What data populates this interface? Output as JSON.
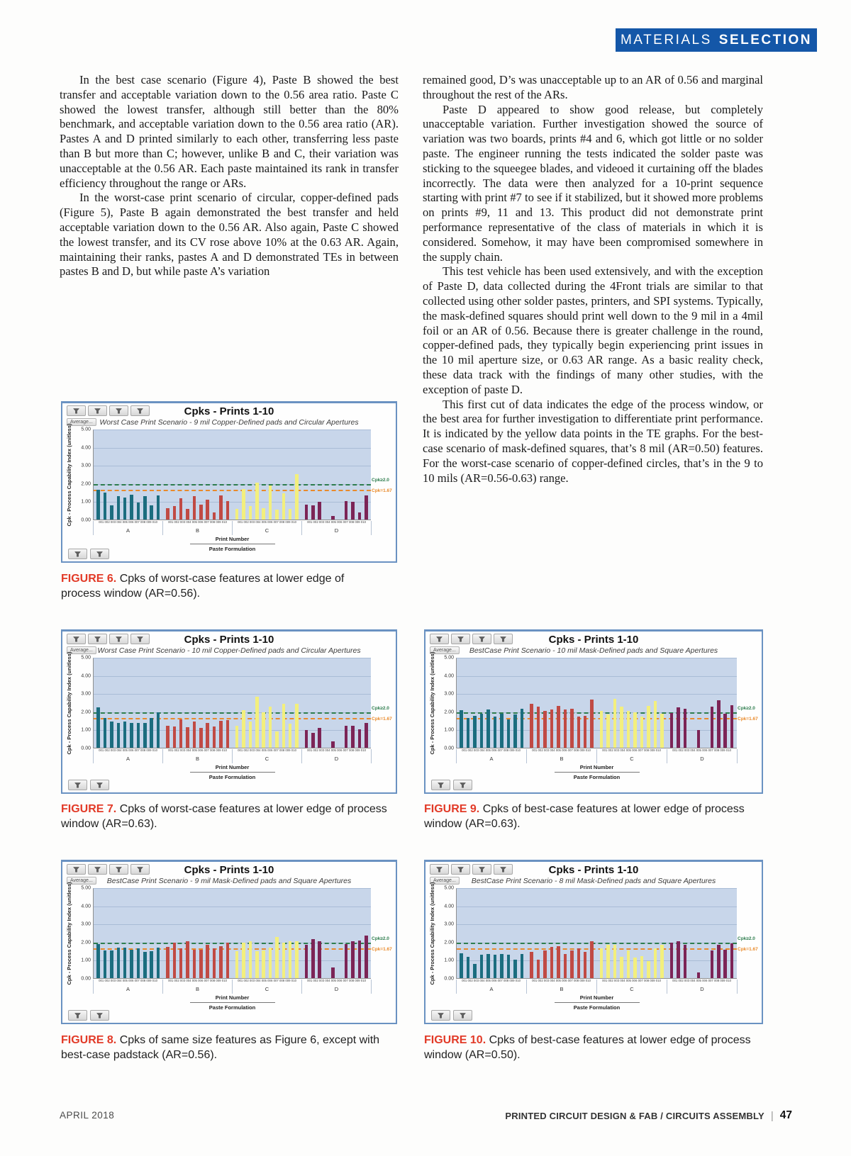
{
  "page": {
    "banner": {
      "text_regular": "MATERIALS",
      "text_bold": "SELECTION",
      "bg_color": "#1457a8"
    },
    "footer": {
      "left": "APRIL 2018",
      "right": "PRINTED CIRCUIT DESIGN & FAB / CIRCUITS ASSEMBLY",
      "separator": "|",
      "page_number": "47"
    }
  },
  "article": {
    "left_column": [
      "In the best case scenario (Figure 4), Paste B showed the best transfer and acceptable variation down to the 0.56 area ratio. Paste C showed the lowest transfer, although still better than the 80% benchmark, and acceptable variation down to the 0.56 area ratio (AR). Pastes A and D printed similarly to each other, transferring less paste than B but more than C; however, unlike B and C, their variation was unacceptable at the 0.56 AR. Each paste maintained its rank in transfer efficiency throughout the range or ARs.",
      "In the worst-case print scenario of circular, copper-defined pads (Figure 5), Paste B again demonstrated the best transfer and held acceptable variation down to the 0.56 AR. Also again, Paste C showed the lowest transfer, and its CV rose above 10% at the 0.63 AR. Again, maintaining their ranks, pastes A and D demonstrated TEs in between pastes B and D, but while paste A’s variation"
    ],
    "right_column": [
      "remained good, D’s was unacceptable up to an AR of 0.56 and marginal throughout the rest of the ARs.",
      "Paste D appeared to show good release, but completely unacceptable variation. Further investigation showed the source of variation was two boards, prints #4 and 6, which got little or no solder paste. The engineer running the tests indicated the solder paste was sticking to the squeegee blades, and videoed it curtaining off the blades incorrectly. The data were then analyzed for a 10-print sequence starting with print #7 to see if it stabilized, but it showed more problems on prints #9, 11 and 13. This product did not demonstrate print performance representative of the class of materials in which it is considered. Somehow, it may have been compromised somewhere in the supply chain.",
      "This test vehicle has been used extensively, and with the exception of Paste D, data collected during the 4Front trials are similar to that collected using other solder pastes, printers, and SPI systems. Typically, the mask-defined squares should print well down to the 9 mil in a 4mil foil or an AR of 0.56. Because there is greater challenge in the round, copper-defined pads, they typically begin experiencing print issues in the 10 mil aperture size, or 0.63 AR range. As a basic reality check, these data track with the findings of many other studies, with the exception of paste D.",
      "This first cut of data indicates the edge of the process window, or the best area for further investigation to differentiate print performance. It is indicated by the yellow data points in the TE graphs. For the best-case scenario of mask-defined squares, that’s 8 mil (AR=0.50) features. For the worst-case scenario of copper-defined circles, that’s in the 9 to 10 mils (AR=0.56-0.63) range."
    ]
  },
  "chart_data": [
    {
      "id": "figure-6",
      "type": "bar",
      "title": "Cpks - Prints 1-10",
      "subtitle": "Worst Case Print Scenario -  9 mil Copper-Defined pads and Circular Apertures",
      "toolbar_button": "Average...",
      "ylabel": "Cpk - Process Capability Index (unitless)",
      "xlabel": "Print Number",
      "xlabel2": "Paste Formulation",
      "ylim": [
        0,
        5
      ],
      "yticks": [
        "5.00",
        "4.00",
        "3.00",
        "2.00",
        "1.00",
        "0.00"
      ],
      "print_labels": [
        "001",
        "002",
        "003",
        "004",
        "005",
        "006",
        "007",
        "008",
        "009",
        "010"
      ],
      "categories": [
        "A",
        "B",
        "C",
        "D"
      ],
      "series": [
        {
          "name": "A",
          "color": "#1b6d7f",
          "values": [
            1.65,
            1.5,
            0.8,
            1.3,
            1.25,
            1.4,
            0.95,
            1.3,
            0.8,
            1.35
          ]
        },
        {
          "name": "B",
          "color": "#c04a44",
          "values": [
            0.65,
            0.75,
            1.2,
            0.6,
            1.3,
            0.85,
            1.1,
            0.4,
            1.35,
            1.05
          ]
        },
        {
          "name": "C",
          "color": "#f3ef7d",
          "values": [
            0.6,
            1.7,
            0.75,
            2.05,
            0.65,
            1.9,
            0.55,
            1.45,
            0.6,
            2.55
          ]
        },
        {
          "name": "D",
          "color": "#7c2456",
          "values": [
            0.85,
            0.8,
            1.0,
            0,
            0.2,
            0,
            1.05,
            1.0,
            0.4,
            1.35
          ]
        }
      ],
      "ref_lines": [
        {
          "label": "Cpk≥2.0",
          "value": 2.0,
          "color": "#2e7d4e"
        },
        {
          "label": "Cpk=1.67",
          "value": 1.67,
          "color": "#e98a2b"
        }
      ],
      "caption_label": "FIGURE 6.",
      "caption_text": "Cpks of worst-case features at lower edge of process window (AR=0.56)."
    },
    {
      "id": "figure-7",
      "type": "bar",
      "title": "Cpks - Prints 1-10",
      "subtitle": "Worst Case Print Scenario -  10 mil Copper-Defined pads and Circular Apertures",
      "toolbar_button": "Average...",
      "ylabel": "Cpk - Process Capability Index (unitless)",
      "xlabel": "Print Number",
      "xlabel2": "Paste Formulation",
      "ylim": [
        0,
        5
      ],
      "yticks": [
        "5.00",
        "4.00",
        "3.00",
        "2.00",
        "1.00",
        "0.00"
      ],
      "print_labels": [
        "001",
        "002",
        "003",
        "004",
        "005",
        "006",
        "007",
        "008",
        "009",
        "010"
      ],
      "categories": [
        "A",
        "B",
        "C",
        "D"
      ],
      "series": [
        {
          "name": "A",
          "color": "#1b6d7f",
          "values": [
            2.25,
            1.65,
            1.45,
            1.4,
            1.45,
            1.4,
            1.4,
            1.4,
            1.65,
            2.0
          ]
        },
        {
          "name": "B",
          "color": "#c04a44",
          "values": [
            1.25,
            1.2,
            1.6,
            1.15,
            1.45,
            1.1,
            1.4,
            1.2,
            1.5,
            1.55
          ]
        },
        {
          "name": "C",
          "color": "#f3ef7d",
          "values": [
            1.25,
            2.1,
            1.45,
            2.85,
            2.0,
            2.3,
            0.9,
            2.45,
            1.35,
            2.45
          ]
        },
        {
          "name": "D",
          "color": "#7c2456",
          "values": [
            1.0,
            0.85,
            1.1,
            0,
            0.35,
            0,
            1.25,
            1.25,
            1.05,
            1.4
          ]
        }
      ],
      "ref_lines": [
        {
          "label": "Cpk≥2.0",
          "value": 2.0,
          "color": "#2e7d4e"
        },
        {
          "label": "Cpk=1.67",
          "value": 1.67,
          "color": "#e98a2b"
        }
      ],
      "caption_label": "FIGURE 7.",
      "caption_text": "Cpks of worst-case features at lower edge of process window (AR=0.63)."
    },
    {
      "id": "figure-8",
      "type": "bar",
      "title": "Cpks - Prints 1-10",
      "subtitle": "BestCase Print Scenario -  9 mil Mask-Defined pads and Square Apertures",
      "toolbar_button": "Average...",
      "ylabel": "Cpk - Process Capability Index (unitless)",
      "xlabel": "Print Number",
      "xlabel2": "Paste Formulation",
      "ylim": [
        0,
        5
      ],
      "yticks": [
        "5.00",
        "4.00",
        "3.00",
        "2.00",
        "1.00",
        "0.00"
      ],
      "print_labels": [
        "001",
        "002",
        "003",
        "004",
        "005",
        "006",
        "007",
        "008",
        "009",
        "010"
      ],
      "categories": [
        "A",
        "B",
        "C",
        "D"
      ],
      "series": [
        {
          "name": "A",
          "color": "#1b6d7f",
          "values": [
            1.9,
            1.55,
            1.55,
            1.7,
            1.7,
            1.6,
            1.65,
            1.45,
            1.5,
            1.7
          ]
        },
        {
          "name": "B",
          "color": "#c04a44",
          "values": [
            1.75,
            2.0,
            1.65,
            2.05,
            1.6,
            1.6,
            1.85,
            1.65,
            1.8,
            2.0
          ]
        },
        {
          "name": "C",
          "color": "#f3ef7d",
          "values": [
            1.5,
            2.0,
            2.05,
            1.5,
            1.55,
            1.7,
            2.3,
            2.0,
            2.05,
            2.05
          ]
        },
        {
          "name": "D",
          "color": "#7c2456",
          "values": [
            1.85,
            2.2,
            2.05,
            0,
            0.6,
            0,
            1.9,
            2.05,
            2.1,
            2.4
          ]
        }
      ],
      "ref_lines": [
        {
          "label": "Cpk≥2.0",
          "value": 2.0,
          "color": "#2e7d4e"
        },
        {
          "label": "Cpk=1.67",
          "value": 1.67,
          "color": "#e98a2b"
        }
      ],
      "caption_label": "FIGURE 8.",
      "caption_text": "Cpks of same size features as Figure 6, except with best-case padstack (AR=0.56)."
    },
    {
      "id": "figure-9",
      "type": "bar",
      "title": "Cpks - Prints 1-10",
      "subtitle": "BestCase Print Scenario -  10 mil Mask-Defined pads and Square Apertures",
      "toolbar_button": "Average...",
      "ylabel": "Cpk - Process Capability Index (unitless)",
      "xlabel": "Print Number",
      "xlabel2": "Paste Formulation",
      "ylim": [
        0,
        5
      ],
      "yticks": [
        "5.00",
        "4.00",
        "3.00",
        "2.00",
        "1.00",
        "0.00"
      ],
      "print_labels": [
        "001",
        "002",
        "003",
        "004",
        "005",
        "006",
        "007",
        "008",
        "009",
        "010"
      ],
      "categories": [
        "A",
        "B",
        "C",
        "D"
      ],
      "series": [
        {
          "name": "A",
          "color": "#1b6d7f",
          "values": [
            2.1,
            1.65,
            1.8,
            1.9,
            2.15,
            1.75,
            1.9,
            1.6,
            1.85,
            2.2
          ]
        },
        {
          "name": "B",
          "color": "#c04a44",
          "values": [
            2.45,
            2.3,
            2.05,
            2.15,
            2.35,
            2.15,
            2.2,
            1.75,
            1.8,
            2.7
          ]
        },
        {
          "name": "C",
          "color": "#f3ef7d",
          "values": [
            2.05,
            1.85,
            2.75,
            2.3,
            2.05,
            2.0,
            1.75,
            2.35,
            2.6,
            1.9
          ]
        },
        {
          "name": "D",
          "color": "#7c2456",
          "values": [
            1.95,
            2.25,
            2.2,
            0,
            1.0,
            0,
            2.3,
            2.65,
            1.9,
            2.4
          ]
        }
      ],
      "ref_lines": [
        {
          "label": "Cpk≥2.0",
          "value": 2.0,
          "color": "#2e7d4e"
        },
        {
          "label": "Cpk=1.67",
          "value": 1.67,
          "color": "#e98a2b"
        }
      ],
      "caption_label": "FIGURE 9.",
      "caption_text": "Cpks of best-case features at lower edge of process window (AR=0.63)."
    },
    {
      "id": "figure-10",
      "type": "bar",
      "title": "Cpks - Prints 1-10",
      "subtitle": "BestCase Print Scenario -  8 mil Mask-Defined pads and Square Apertures",
      "toolbar_button": "Average...",
      "ylabel": "Cpk - Process Capability Index (unitless)",
      "xlabel": "Print Number",
      "xlabel2": "Paste Formulation",
      "ylim": [
        0,
        5
      ],
      "yticks": [
        "5.00",
        "4.00",
        "3.00",
        "2.00",
        "1.00",
        "0.00"
      ],
      "print_labels": [
        "001",
        "002",
        "003",
        "004",
        "005",
        "006",
        "007",
        "008",
        "009",
        "010"
      ],
      "categories": [
        "A",
        "B",
        "C",
        "D"
      ],
      "series": [
        {
          "name": "A",
          "color": "#1b6d7f",
          "values": [
            1.4,
            1.2,
            0.8,
            1.3,
            1.35,
            1.3,
            1.35,
            1.3,
            1.05,
            1.35
          ]
        },
        {
          "name": "B",
          "color": "#c04a44",
          "values": [
            1.45,
            1.05,
            1.55,
            1.75,
            1.8,
            1.35,
            1.55,
            1.65,
            1.45,
            2.05
          ]
        },
        {
          "name": "C",
          "color": "#f3ef7d",
          "values": [
            1.65,
            1.85,
            1.85,
            1.2,
            1.55,
            1.15,
            1.25,
            0.95,
            1.65,
            1.85
          ]
        },
        {
          "name": "D",
          "color": "#7c2456",
          "values": [
            2.0,
            2.05,
            1.85,
            0,
            0.3,
            0,
            1.55,
            1.85,
            1.6,
            1.95
          ]
        }
      ],
      "ref_lines": [
        {
          "label": "Cpk≥2.0",
          "value": 2.0,
          "color": "#2e7d4e"
        },
        {
          "label": "Cpk=1.67",
          "value": 1.67,
          "color": "#e98a2b"
        }
      ],
      "caption_label": "FIGURE 10.",
      "caption_text": "Cpks of best-case features at lower edge of process window (AR=0.50)."
    }
  ]
}
